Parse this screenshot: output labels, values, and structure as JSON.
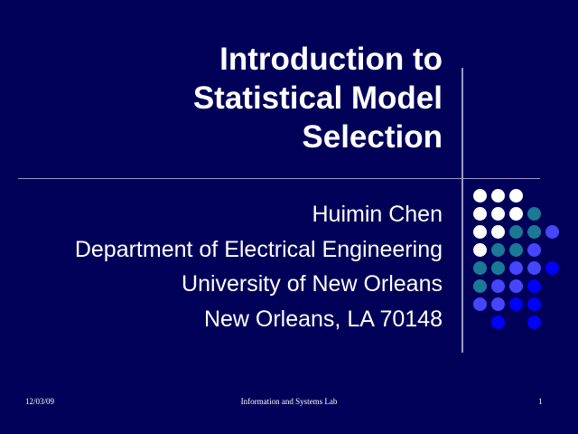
{
  "slide": {
    "title_lines": [
      "Introduction to",
      "Statistical Model",
      "Selection"
    ],
    "subtitle_lines": [
      "Huimin Chen",
      "Department of Electrical Engineering",
      "University of New Orleans",
      "New Orleans, LA 70148"
    ]
  },
  "footer": {
    "date": "12/03/09",
    "center": "Information and Systems Lab",
    "page": "1"
  },
  "colors": {
    "background": "#000058",
    "W": "#ffffff",
    "T": "#1a7a96",
    "B": "#4646ff",
    "D": "#0000ff"
  },
  "dot_grid": [
    "WWW..",
    "WWWT.",
    "WWTTB",
    "WTTB.",
    "TTBBD",
    "TBBD.",
    "BBDD.",
    ".D.D."
  ]
}
